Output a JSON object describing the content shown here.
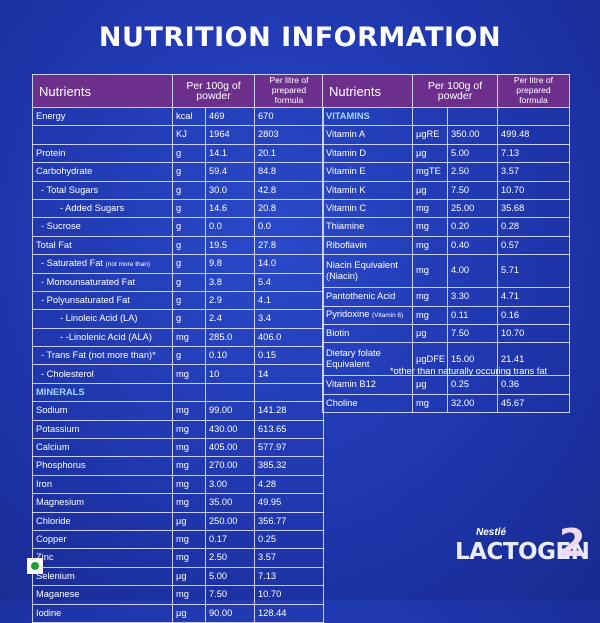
{
  "title": "NUTRITION INFORMATION",
  "left_header": {
    "nutrients": "Nutrients",
    "per100": "Per 100g of powder",
    "perlitre": "Per litre of prepared formula"
  },
  "right_header": {
    "nutrients": "Nutrients",
    "per100": "Per 100g of powder",
    "perlitre": "Per litre of prepared formula"
  },
  "left_rows": [
    {
      "name": "Energy",
      "unit": "kcal",
      "p100": "469",
      "pl": "670"
    },
    {
      "name": "",
      "unit": "KJ",
      "p100": "1964",
      "pl": "2803"
    },
    {
      "name": "Protein",
      "unit": "g",
      "p100": "14.1",
      "pl": "20.1"
    },
    {
      "name": "Carbohydrate",
      "unit": "g",
      "p100": "59.4",
      "pl": "84.8"
    },
    {
      "name": "- Total Sugars",
      "unit": "g",
      "p100": "30.0",
      "pl": "42.8"
    },
    {
      "name": "- Added Sugars",
      "unit": "g",
      "p100": "14.6",
      "pl": "20.8"
    },
    {
      "name": "- Sucrose",
      "unit": "g",
      "p100": "0.0",
      "pl": "0.0"
    },
    {
      "name": "Total Fat",
      "unit": "g",
      "p100": "19.5",
      "pl": "27.8"
    },
    {
      "name": "- Saturated Fat",
      "note": "(not more than)",
      "unit": "g",
      "p100": "9.8",
      "pl": "14.0"
    },
    {
      "name": "- Monounsaturated Fat",
      "unit": "g",
      "p100": "3.8",
      "pl": "5.4"
    },
    {
      "name": "- Polyunsaturated Fat",
      "unit": "g",
      "p100": "2.9",
      "pl": "4.1"
    },
    {
      "name": "- Linoleic Acid (LA)",
      "unit": "g",
      "p100": "2.4",
      "pl": "3.4"
    },
    {
      "name": "- -Linolenic Acid (ALA)",
      "unit": "mg",
      "p100": "285.0",
      "pl": "406.0"
    },
    {
      "name": "- Trans Fat (not more than)*",
      "unit": "g",
      "p100": "0.10",
      "pl": "0.15"
    },
    {
      "name": "- Cholesterol",
      "unit": "mg",
      "p100": "10",
      "pl": "14"
    }
  ],
  "minerals_label": "MINERALS",
  "minerals": [
    {
      "name": "Sodium",
      "unit": "mg",
      "p100": "99.00",
      "pl": "141.28"
    },
    {
      "name": "Potassium",
      "unit": "mg",
      "p100": "430.00",
      "pl": "613.65"
    },
    {
      "name": "Calcium",
      "unit": "mg",
      "p100": "405.00",
      "pl": "577.97"
    },
    {
      "name": "Phosphorus",
      "unit": "mg",
      "p100": "270.00",
      "pl": "385.32"
    },
    {
      "name": "Iron",
      "unit": "mg",
      "p100": "3.00",
      "pl": "4.28"
    },
    {
      "name": "Magnesium",
      "unit": "mg",
      "p100": "35.00",
      "pl": "49.95"
    },
    {
      "name": "Chloride",
      "unit": "µg",
      "p100": "250.00",
      "pl": "356.77"
    },
    {
      "name": "Copper",
      "unit": "mg",
      "p100": "0.17",
      "pl": "0.25"
    },
    {
      "name": "Zinc",
      "unit": "mg",
      "p100": "2.50",
      "pl": "3.57"
    },
    {
      "name": "Selenium",
      "unit": "µg",
      "p100": "5.00",
      "pl": "7.13"
    },
    {
      "name": "Maganese",
      "unit": "mg",
      "p100": "7.50",
      "pl": "10.70"
    },
    {
      "name": "Iodine",
      "unit": "µg",
      "p100": "90.00",
      "pl": "128.44"
    }
  ],
  "vitamins_label": "VITAMINS",
  "vitamins": [
    {
      "name": "Vitamin A",
      "unit": "µgRE",
      "p100": "350.00",
      "pl": "499.48"
    },
    {
      "name": "Vitamin D",
      "unit": "µg",
      "p100": "5.00",
      "pl": "7.13"
    },
    {
      "name": "Vitamin E",
      "unit": "mgTE",
      "p100": "2.50",
      "pl": "3.57"
    },
    {
      "name": "Vitamin K",
      "unit": "µg",
      "p100": "7.50",
      "pl": "10.70"
    },
    {
      "name": "Vitamin C",
      "unit": "mg",
      "p100": "25.00",
      "pl": "35.68"
    },
    {
      "name": "Thiamine",
      "unit": "mg",
      "p100": "0.20",
      "pl": "0.28"
    },
    {
      "name": "Riboflavin",
      "unit": "mg",
      "p100": "0.40",
      "pl": "0.57"
    },
    {
      "name": "Niacin Equivalent (Niacin)",
      "unit": "mg",
      "p100": "4.00",
      "pl": "5.71",
      "tall": true
    },
    {
      "name": "Pantothenic Acid",
      "unit": "mg",
      "p100": "3.30",
      "pl": "4.71"
    },
    {
      "name": "Pyridoxine",
      "note": "(Vitamin 6)",
      "unit": "mg",
      "p100": "0.11",
      "pl": "0.16"
    },
    {
      "name": "Biotin",
      "unit": "µg",
      "p100": "7.50",
      "pl": "10.70"
    },
    {
      "name": "Dietary folate Equivalent",
      "unit": "µgDFE",
      "p100": "15.00",
      "pl": "21.41",
      "tall": true
    },
    {
      "name": "Vitamin B12",
      "unit": "µg",
      "p100": "0.25",
      "pl": "0.36"
    },
    {
      "name": "Choline",
      "unit": "mg",
      "p100": "32.00",
      "pl": "45.67"
    }
  ],
  "footnote": "*other than naturally occuring trans fat",
  "brand": {
    "maker": "Nestlé",
    "product": "LACTOGEN",
    "stage": "2"
  },
  "colors": {
    "background": "#1f36ad",
    "header": "#6c2f8b",
    "section_label": "#9fd8ff",
    "veg_mark": "#1ea23a"
  }
}
